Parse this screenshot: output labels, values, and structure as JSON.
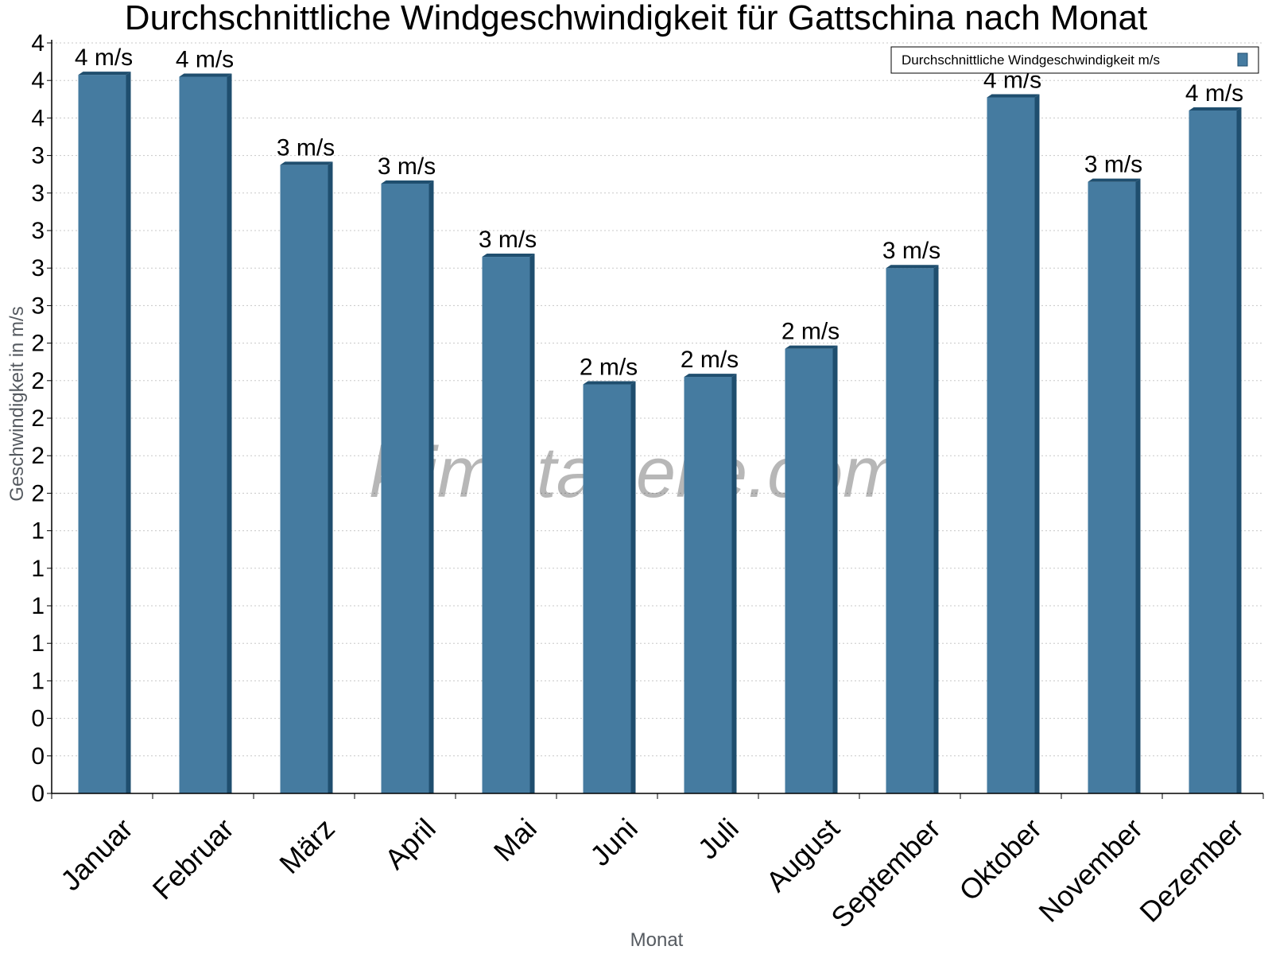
{
  "chart_data": {
    "type": "bar",
    "title": "Durchschnittliche Windgeschwindigkeit für Gattschina nach Monat",
    "xlabel": "Monat",
    "ylabel": "Geschwindigkeit in m/s",
    "categories": [
      "Januar",
      "Februar",
      "März",
      "April",
      "Mai",
      "Juni",
      "Juli",
      "August",
      "September",
      "Oktober",
      "November",
      "Dezember"
    ],
    "series": [
      {
        "name": "Durchschnittliche Windgeschwindigkeit m/s",
        "values": [
          3.83,
          3.82,
          3.35,
          3.25,
          2.86,
          2.18,
          2.22,
          2.37,
          2.8,
          3.71,
          3.26,
          3.64
        ],
        "data_labels": [
          "4 m/s",
          "4 m/s",
          "3 m/s",
          "3 m/s",
          "3 m/s",
          "2 m/s",
          "2 m/s",
          "2 m/s",
          "3 m/s",
          "4 m/s",
          "3 m/s",
          "4 m/s"
        ],
        "color": "#457ba0",
        "side_color": "#1f4e6e"
      }
    ],
    "ylim": [
      0,
      4
    ],
    "yticks": [
      0,
      0.2,
      0.4,
      0.6,
      0.8,
      1.0,
      1.2,
      1.4,
      1.6,
      1.8,
      2.0,
      2.2,
      2.4,
      2.6,
      2.8,
      3.0,
      3.2,
      3.4,
      3.6,
      3.8,
      4.0
    ],
    "ytick_labels": [
      "0",
      "0",
      "0",
      "1",
      "1",
      "1",
      "1",
      "1",
      "2",
      "2",
      "2",
      "2",
      "2",
      "3",
      "3",
      "3",
      "3",
      "3",
      "4",
      "4",
      "4"
    ],
    "grid": true,
    "legend_position": "top-right"
  },
  "watermark": "klimatabelle.com"
}
